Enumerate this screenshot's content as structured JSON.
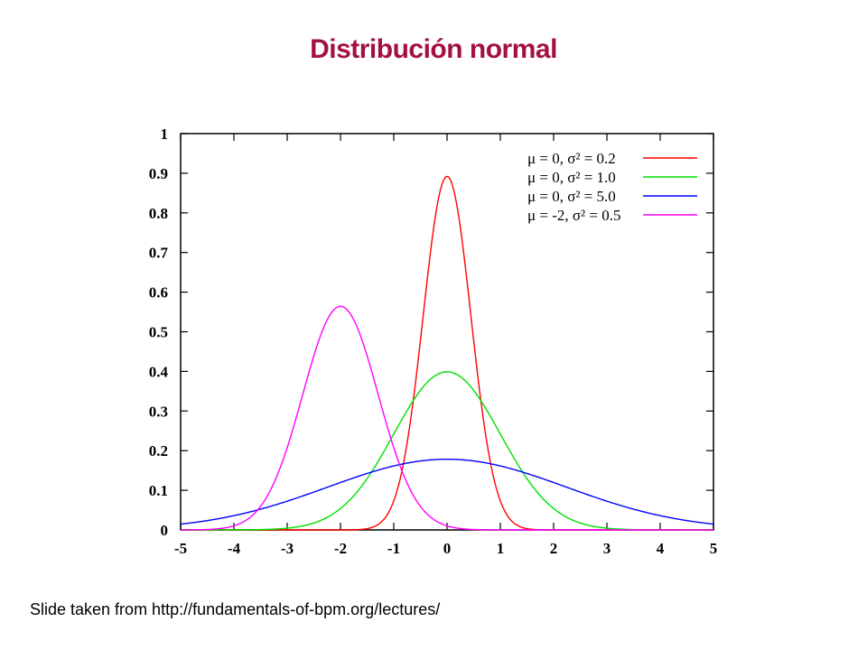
{
  "slide": {
    "title": "Distribución normal",
    "footer": "Slide taken from http://fundamentals-of-bpm.org/lectures/"
  },
  "chart_data": {
    "type": "line",
    "title": "",
    "xlabel": "",
    "ylabel": "",
    "xlim": [
      -5,
      5
    ],
    "ylim": [
      0,
      1
    ],
    "x_ticks": [
      -5,
      -4,
      -3,
      -2,
      -1,
      0,
      1,
      2,
      3,
      4,
      5
    ],
    "y_ticks": [
      0,
      0.1,
      0.2,
      0.3,
      0.4,
      0.5,
      0.6,
      0.7,
      0.8,
      0.9,
      1
    ],
    "y_tick_labels": [
      "0",
      "0.1",
      "0.2",
      "0.3",
      "0.4",
      "0.5",
      "0.6",
      "0.7",
      "0.8",
      "0.9",
      "1"
    ],
    "x_tick_labels": [
      "-5",
      "-4",
      "-3",
      "-2",
      "-1",
      "0",
      "1",
      "2",
      "3",
      "4",
      "5"
    ],
    "grid": false,
    "legend_position": "top-right",
    "x": [
      -5,
      -4,
      -3,
      -2.5,
      -2,
      -1.5,
      -1,
      -0.5,
      0,
      0.5,
      1,
      1.5,
      2,
      3,
      4,
      5
    ],
    "series": [
      {
        "name": "μ = 0, σ² = 0.2",
        "mu": 0,
        "variance": 0.2,
        "color": "#ff0000",
        "values": [
          0,
          0,
          0,
          0,
          0,
          0.003,
          0.008,
          0.48,
          0.89,
          0.48,
          0.008,
          0.003,
          0,
          0,
          0,
          0
        ]
      },
      {
        "name": "μ = 0, σ² = 1.0",
        "mu": 0,
        "variance": 1.0,
        "color": "#00e000",
        "values": [
          0,
          0.0001,
          0.004,
          0.018,
          0.054,
          0.13,
          0.24,
          0.35,
          0.4,
          0.35,
          0.24,
          0.13,
          0.054,
          0.004,
          0.0001,
          0
        ]
      },
      {
        "name": "μ = 0, σ² = 5.0",
        "mu": 0,
        "variance": 5.0,
        "color": "#0000ff",
        "values": [
          0.015,
          0.036,
          0.073,
          0.096,
          0.12,
          0.142,
          0.161,
          0.173,
          0.178,
          0.173,
          0.161,
          0.142,
          0.12,
          0.073,
          0.036,
          0.015
        ]
      },
      {
        "name": "μ = -2, σ² = 0.5",
        "mu": -2,
        "variance": 0.5,
        "color": "#ff00ff",
        "values": [
          0,
          0.0003,
          0.21,
          0.44,
          0.56,
          0.44,
          0.21,
          0.059,
          0.0103,
          0.001,
          0.0001,
          0,
          0,
          0,
          0,
          0
        ]
      }
    ],
    "legend_labels": [
      "μ =  0, σ² = 0.2",
      "μ =  0, σ² = 1.0",
      "μ =  0, σ² = 5.0",
      "μ = -2, σ² = 0.5"
    ]
  }
}
